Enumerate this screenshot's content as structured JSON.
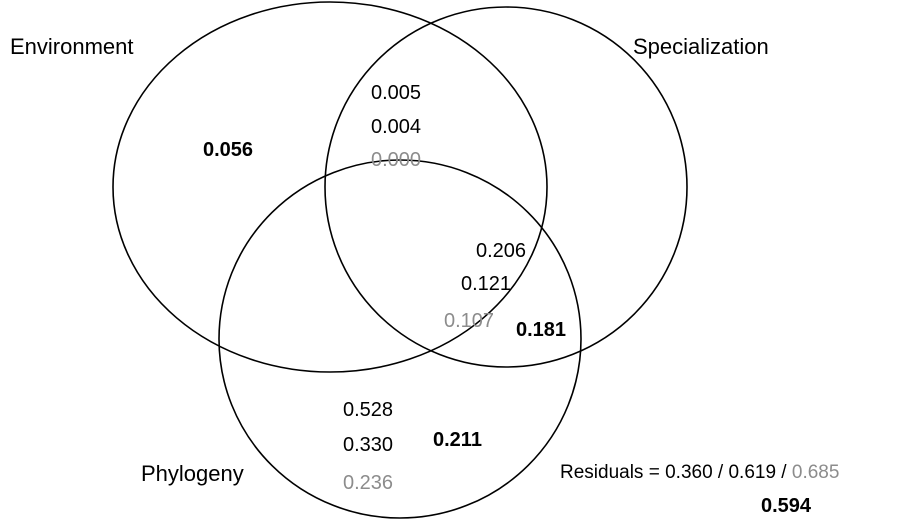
{
  "sets": {
    "environment": "Environment",
    "specialization": "Specialization",
    "phylogeny": "Phylogeny"
  },
  "regions": {
    "environment_only": {
      "bold": "0.056"
    },
    "environment_specialization": {
      "v1": "0.005",
      "v2": "0.004",
      "v3": "0.000"
    },
    "specialization_phylogeny": {
      "v1": "0.206",
      "v2": "0.121",
      "v3": "0.107",
      "bold": "0.181"
    },
    "phylogeny_only": {
      "v1": "0.528",
      "v2": "0.330",
      "v3": "0.236",
      "bold": "0.211"
    }
  },
  "residuals": {
    "prefix": "Residuals = ",
    "v1": "0.360",
    "sep1": " / ",
    "v2": "0.619",
    "sep2": " / ",
    "v3": "0.685",
    "bold": "0.594"
  },
  "colors": {
    "stroke": "#000000",
    "text": "#000000",
    "grey_text": "#8c8c8c"
  }
}
